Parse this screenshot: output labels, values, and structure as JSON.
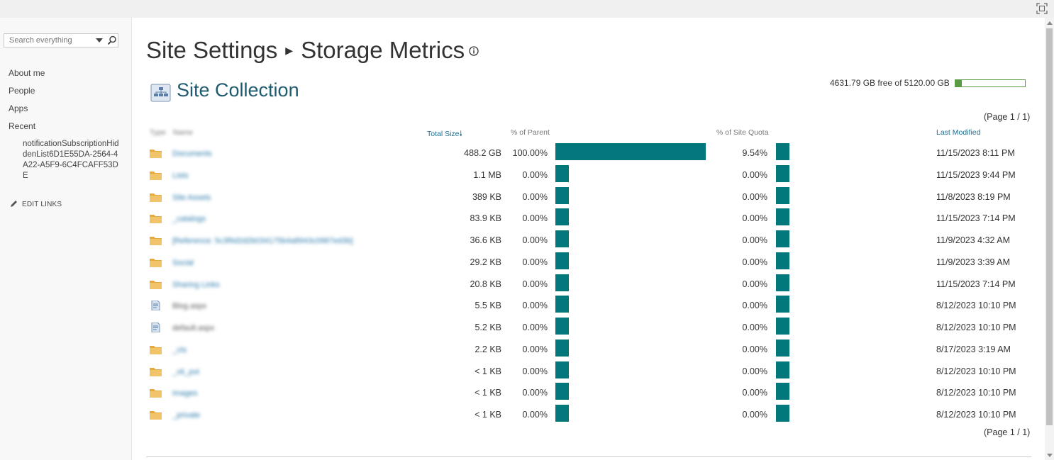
{
  "search": {
    "placeholder": "Search everything"
  },
  "nav": {
    "items": [
      "About me",
      "People",
      "Apps",
      "Recent"
    ],
    "recent_item": "notificationSubscriptionHiddenList6D1E55DA-2564-4A22-A5F9-6C4FCAFF53DE",
    "edit_links": "EDIT LINKS"
  },
  "page": {
    "title_part1": "Site Settings",
    "title_part2": "Storage Metrics",
    "section_title": "Site Collection",
    "quota_text": "4631.79 GB free of 5120.00 GB",
    "quota_used_fraction": 0.095,
    "paging": "(Page 1 / 1)"
  },
  "table": {
    "headers": {
      "type": "Type",
      "name": "Name",
      "total_size": "Total Size",
      "pct_parent": "% of Parent",
      "pct_quota": "% of Site Quota",
      "last_modified": "Last Modified"
    },
    "rows": [
      {
        "type": "folder",
        "name": "Documents",
        "size": "488.2 GB",
        "pct_parent": "100.00%",
        "parent_frac": 1.0,
        "pct_quota": "9.54%",
        "quota_frac": 0.0954,
        "modified": "11/15/2023 8:11 PM"
      },
      {
        "type": "folder",
        "name": "Lists",
        "size": "1.1 MB",
        "pct_parent": "0.00%",
        "parent_frac": 0,
        "pct_quota": "0.00%",
        "quota_frac": 0,
        "modified": "11/15/2023 9:44 PM"
      },
      {
        "type": "folder",
        "name": "Site Assets",
        "size": "389 KB",
        "pct_parent": "0.00%",
        "parent_frac": 0,
        "pct_quota": "0.00%",
        "quota_frac": 0,
        "modified": "11/8/2023 8:19 PM"
      },
      {
        "type": "folder",
        "name": "_catalogs",
        "size": "83.9 KB",
        "pct_parent": "0.00%",
        "parent_frac": 0,
        "pct_quota": "0.00%",
        "quota_frac": 0,
        "modified": "11/15/2023 7:14 PM"
      },
      {
        "type": "folder",
        "name": "[Reference: 5c3f6d2d2b034175b4a8943c0987ed3b]",
        "size": "36.6 KB",
        "pct_parent": "0.00%",
        "parent_frac": 0,
        "pct_quota": "0.00%",
        "quota_frac": 0,
        "modified": "11/9/2023 4:32 AM"
      },
      {
        "type": "folder",
        "name": "Social",
        "size": "29.2 KB",
        "pct_parent": "0.00%",
        "parent_frac": 0,
        "pct_quota": "0.00%",
        "quota_frac": 0,
        "modified": "11/9/2023 3:39 AM"
      },
      {
        "type": "folder",
        "name": "Sharing Links",
        "size": "20.8 KB",
        "pct_parent": "0.00%",
        "parent_frac": 0,
        "pct_quota": "0.00%",
        "quota_frac": 0,
        "modified": "11/15/2023 7:14 PM"
      },
      {
        "type": "file",
        "name": "Blog.aspx",
        "size": "5.5 KB",
        "pct_parent": "0.00%",
        "parent_frac": 0,
        "pct_quota": "0.00%",
        "quota_frac": 0,
        "modified": "8/12/2023 10:10 PM"
      },
      {
        "type": "file",
        "name": "default.aspx",
        "size": "5.2 KB",
        "pct_parent": "0.00%",
        "parent_frac": 0,
        "pct_quota": "0.00%",
        "quota_frac": 0,
        "modified": "8/12/2023 10:10 PM"
      },
      {
        "type": "folder",
        "name": "_cts",
        "size": "2.2 KB",
        "pct_parent": "0.00%",
        "parent_frac": 0,
        "pct_quota": "0.00%",
        "quota_frac": 0,
        "modified": "8/17/2023 3:19 AM"
      },
      {
        "type": "folder",
        "name": "_vti_pvt",
        "size": "< 1 KB",
        "pct_parent": "0.00%",
        "parent_frac": 0,
        "pct_quota": "0.00%",
        "quota_frac": 0,
        "modified": "8/12/2023 10:10 PM"
      },
      {
        "type": "folder",
        "name": "images",
        "size": "< 1 KB",
        "pct_parent": "0.00%",
        "parent_frac": 0,
        "pct_quota": "0.00%",
        "quota_frac": 0,
        "modified": "8/12/2023 10:10 PM"
      },
      {
        "type": "folder",
        "name": "_private",
        "size": "< 1 KB",
        "pct_parent": "0.00%",
        "parent_frac": 0,
        "pct_quota": "0.00%",
        "quota_frac": 0,
        "modified": "8/12/2023 10:10 PM"
      }
    ]
  },
  "colors": {
    "bar": "#03787c",
    "quota_bar": "#5b9a45",
    "folder_icon": "#e8a93a",
    "link": "#1e6f8f"
  },
  "icons": {
    "focus": "focus-mode-icon",
    "search": "search-icon",
    "dropdown": "chevron-down-icon",
    "info": "info-icon",
    "edit": "pencil-icon",
    "site_collection": "site-collection-icon",
    "folder": "folder-icon",
    "file": "file-icon",
    "sort": "sort-descending-icon"
  }
}
